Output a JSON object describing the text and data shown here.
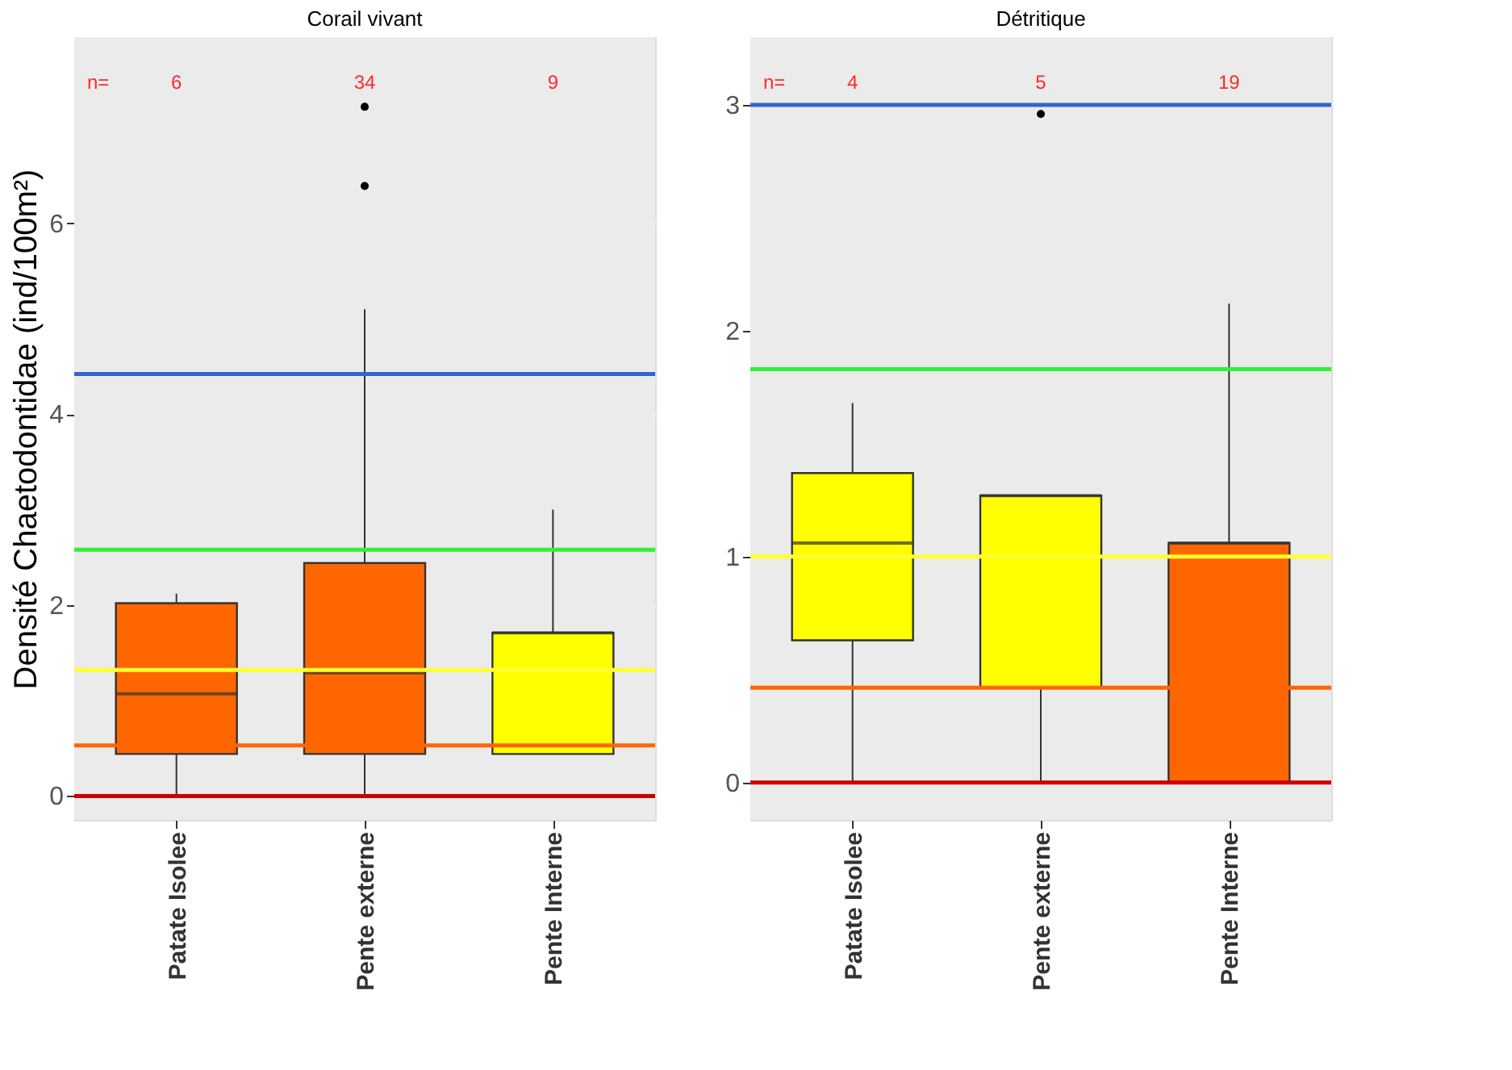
{
  "chart_data": [
    {
      "type": "box",
      "title": "Corail vivant",
      "ylabel": "Densité Chaetodontidae (ind/100m²)",
      "categories": [
        "Patate Isolee",
        "Pente externe",
        "Pente Interne"
      ],
      "colors": [
        "#ff6600",
        "#ff6600",
        "#ffff00"
      ],
      "boxes": [
        {
          "low": 0,
          "q1": 0.44,
          "median": 1.07,
          "q3": 2.02,
          "high": 2.12
        },
        {
          "low": 0,
          "q1": 0.44,
          "median": 1.29,
          "q3": 2.44,
          "high": 5.1,
          "outliers": [
            6.39,
            7.22
          ]
        },
        {
          "low": 0.44,
          "q1": 0.44,
          "median": 1.71,
          "q3": 1.71,
          "high": 3.0
        }
      ],
      "ylim": [
        -0.25,
        7.95
      ],
      "yticks": [
        0,
        2,
        4,
        6
      ],
      "grid": true,
      "ref_lines": [
        {
          "axis": "y",
          "value": 4.42,
          "color": "#3366cc"
        },
        {
          "axis": "y",
          "value": 2.58,
          "color": "#33ee33"
        },
        {
          "axis": "y",
          "value": 1.32,
          "color": "#ffff33"
        },
        {
          "axis": "y",
          "value": 0.53,
          "color": "#ff6600"
        },
        {
          "axis": "y",
          "value": 0,
          "color": "#cc0000"
        }
      ],
      "annotations": [
        "n=",
        "6",
        "34",
        "9"
      ]
    },
    {
      "type": "box",
      "title": "Détritique",
      "categories": [
        "Patate Isolee",
        "Pente externe",
        "Pente Interne"
      ],
      "colors": [
        "#ffff00",
        "#ffff00",
        "#ff6600"
      ],
      "boxes": [
        {
          "low": 0,
          "q1": 0.63,
          "median": 1.06,
          "q3": 1.37,
          "high": 1.68
        },
        {
          "low": 0,
          "q1": 0.42,
          "median": 1.27,
          "q3": 1.27,
          "high": 1.27,
          "outliers": [
            2.96
          ]
        },
        {
          "low": 0,
          "q1": 0,
          "median": 1.06,
          "q3": 1.06,
          "high": 2.12
        }
      ],
      "ylim": [
        -0.165,
        3.3
      ],
      "yticks": [
        0,
        1,
        2,
        3
      ],
      "grid": true,
      "ref_lines": [
        {
          "axis": "y",
          "value": 3.0,
          "color": "#3366cc"
        },
        {
          "axis": "y",
          "value": 1.83,
          "color": "#33ee33"
        },
        {
          "axis": "y",
          "value": 1.0,
          "color": "#ffff33"
        },
        {
          "axis": "y",
          "value": 0.42,
          "color": "#ff6600"
        },
        {
          "axis": "y",
          "value": 0,
          "color": "#cc0000"
        }
      ],
      "annotations": [
        "n=",
        "4",
        "5",
        "19"
      ]
    }
  ]
}
